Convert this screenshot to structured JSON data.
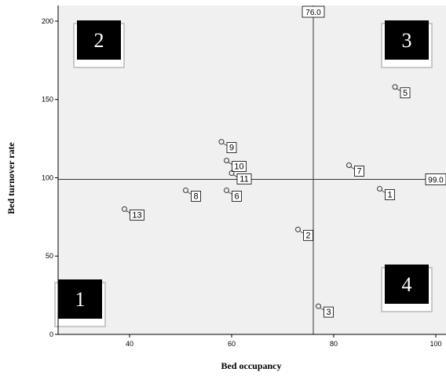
{
  "chart_data": {
    "type": "scatter",
    "xlabel": "Bed occupancy",
    "ylabel": "Bed turnover rate",
    "xlim": [
      26,
      102
    ],
    "ylim": [
      0,
      210
    ],
    "x_ticks": [
      40,
      60,
      80,
      100
    ],
    "y_ticks": [
      0,
      50,
      100,
      150,
      200
    ],
    "grid": false,
    "colors": {
      "plot_background": "#f0f0f0",
      "point_stroke": "#333333",
      "reference_line": "#333333",
      "quadrant_box": "#000000",
      "quadrant_shadow": "#c8c8c8"
    },
    "points": [
      {
        "label": "1",
        "x": 89,
        "y": 93
      },
      {
        "label": "2",
        "x": 73,
        "y": 67
      },
      {
        "label": "3",
        "x": 77,
        "y": 18
      },
      {
        "label": "5",
        "x": 92,
        "y": 158
      },
      {
        "label": "6",
        "x": 59,
        "y": 92
      },
      {
        "label": "7",
        "x": 83,
        "y": 108
      },
      {
        "label": "8",
        "x": 51,
        "y": 92
      },
      {
        "label": "9",
        "x": 58,
        "y": 123
      },
      {
        "label": "10",
        "x": 59,
        "y": 111
      },
      {
        "label": "11",
        "x": 60,
        "y": 103
      },
      {
        "label": "13",
        "x": 39,
        "y": 80
      }
    ],
    "reference_lines": [
      {
        "axis": "x",
        "value": 76.0,
        "label": "76.0"
      },
      {
        "axis": "y",
        "value": 99.0,
        "label": "99.0"
      }
    ],
    "quadrants": [
      {
        "label": "1",
        "position": "bottom-left"
      },
      {
        "label": "2",
        "position": "top-left"
      },
      {
        "label": "3",
        "position": "top-right"
      },
      {
        "label": "4",
        "position": "bottom-right"
      }
    ]
  }
}
